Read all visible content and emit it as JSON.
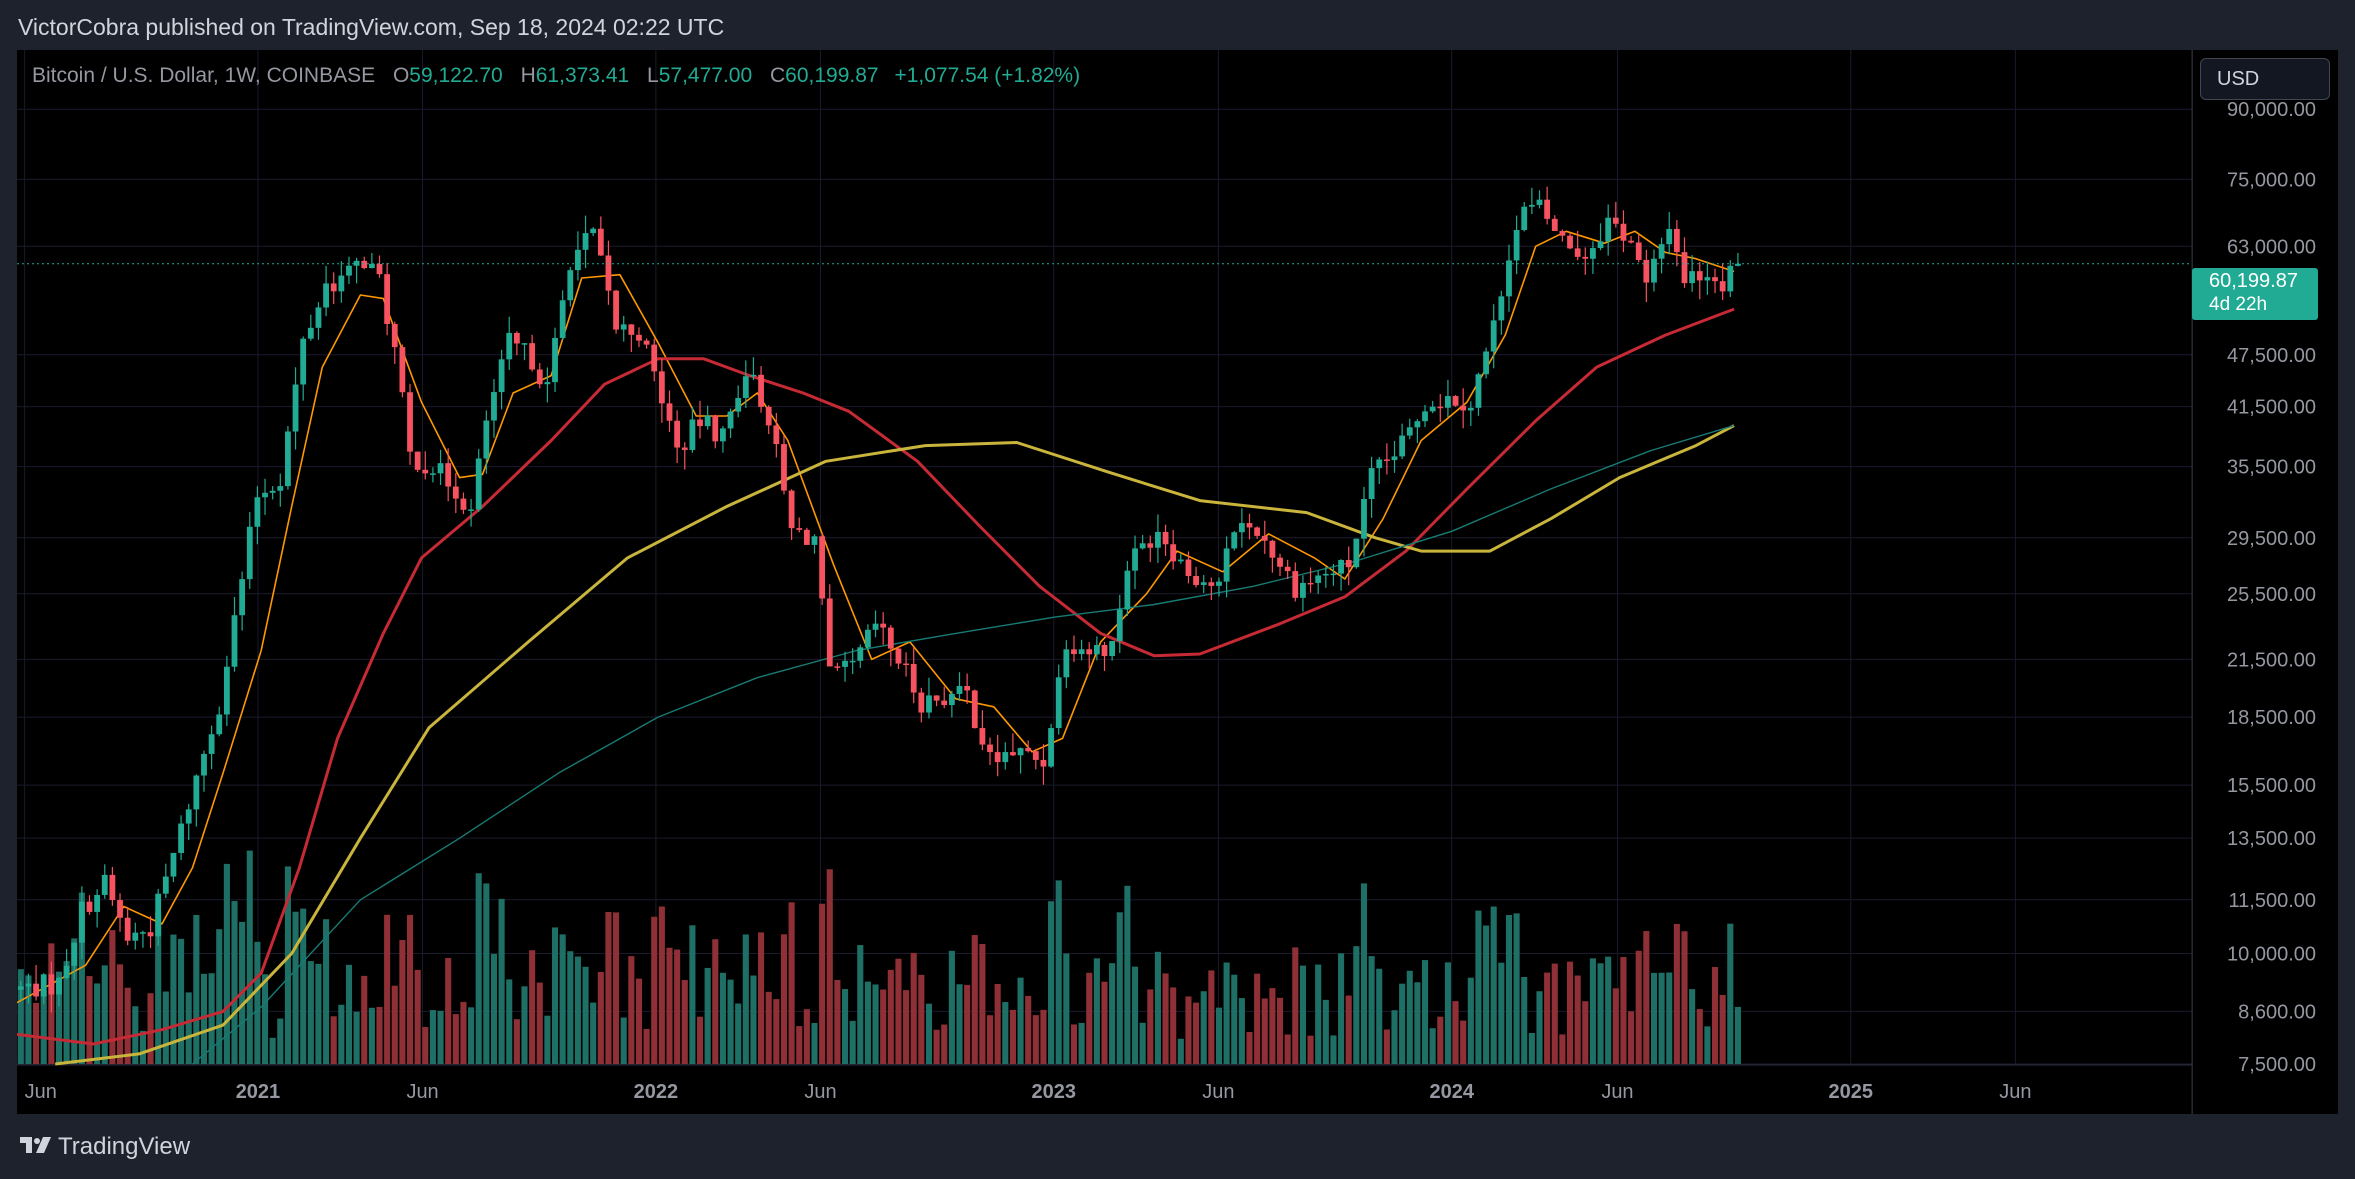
{
  "header": {
    "publish_text": "VictorCobra published on TradingView.com, Sep 18, 2024 02:22 UTC"
  },
  "legend": {
    "symbol": "Bitcoin / U.S. Dollar, 1W, COINBASE",
    "open_key": "O",
    "open": "59,122.70",
    "high_key": "H",
    "high": "61,373.41",
    "low_key": "L",
    "low": "57,477.00",
    "close_key": "C",
    "close": "60,199.87",
    "change": "+1,077.54 (+1.82%)"
  },
  "currency_button": "USD",
  "price_tag": {
    "price": "60,199.87",
    "countdown": "4d 22h"
  },
  "brand": {
    "name": "TradingView"
  },
  "colors": {
    "bull": "#22ab94",
    "bear": "#f7525f",
    "bull_volume": "#1e6f65",
    "bear_volume": "#8f2f36",
    "ma_fast": "#ff9800",
    "ma_mid": "#c62a35",
    "ma_slow": "#c9b43c",
    "ma_long": "#177b74",
    "grid": "#1a1a2e",
    "axis_text": "#9598a1",
    "price_line": "#22ab94"
  },
  "chart_data": {
    "type": "candlestick",
    "title": "Bitcoin / U.S. Dollar, 1W, COINBASE",
    "scale": "log",
    "ylim": [
      7500,
      105000
    ],
    "y_ticks": [
      90000,
      75000,
      63000,
      47500,
      41500,
      35500,
      29500,
      25500,
      21500,
      18500,
      15500,
      13500,
      11500,
      10000,
      8600,
      7500
    ],
    "y_tick_labels": [
      "90,000.00",
      "75,000.00",
      "63,000.00",
      "47,500.00",
      "41,500.00",
      "35,500.00",
      "29,500.00",
      "25,500.00",
      "21,500.00",
      "18,500.00",
      "15,500.00",
      "13,500.00",
      "11,500.00",
      "10,000.00",
      "8,600.00",
      "7,500.00"
    ],
    "x_ticks": [
      "2020-06-01",
      "2021-01-01",
      "2021-06-01",
      "2022-01-01",
      "2022-06-01",
      "2023-01-01",
      "2023-06-01",
      "2024-01-01",
      "2024-06-01",
      "2025-01-01",
      "2025-06-01"
    ],
    "x_tick_labels": [
      "Jun",
      "2021",
      "Jun",
      "2022",
      "Jun",
      "2023",
      "Jun",
      "2024",
      "Jun",
      "2025",
      "Jun"
    ],
    "x_tick_bold": [
      false,
      true,
      false,
      true,
      false,
      true,
      false,
      true,
      false,
      true,
      false
    ],
    "last_price": 60199.87,
    "grid": true,
    "price_points": [
      [
        "2020-05-25",
        9100
      ],
      [
        "2020-07-06",
        9250
      ],
      [
        "2020-07-27",
        11200
      ],
      [
        "2020-08-17",
        12000
      ],
      [
        "2020-09-07",
        10400
      ],
      [
        "2020-09-28",
        10700
      ],
      [
        "2020-10-19",
        12900
      ],
      [
        "2020-11-09",
        15800
      ],
      [
        "2020-11-30",
        19200
      ],
      [
        "2020-12-21",
        26500
      ],
      [
        "2021-01-04",
        33000
      ],
      [
        "2021-01-25",
        34500
      ],
      [
        "2021-02-15",
        49000
      ],
      [
        "2021-03-08",
        57000
      ],
      [
        "2021-03-29",
        58500
      ],
      [
        "2021-04-12",
        61000
      ],
      [
        "2021-04-26",
        57500
      ],
      [
        "2021-05-10",
        48000
      ],
      [
        "2021-05-24",
        36500
      ],
      [
        "2021-06-14",
        35500
      ],
      [
        "2021-07-05",
        33500
      ],
      [
        "2021-07-19",
        31500
      ],
      [
        "2021-08-02",
        40000
      ],
      [
        "2021-08-23",
        49000
      ],
      [
        "2021-09-13",
        47000
      ],
      [
        "2021-09-27",
        43500
      ],
      [
        "2021-10-18",
        61000
      ],
      [
        "2021-11-08",
        65000
      ],
      [
        "2021-11-29",
        51000
      ],
      [
        "2021-12-20",
        50500
      ],
      [
        "2022-01-10",
        42500
      ],
      [
        "2022-01-24",
        37000
      ],
      [
        "2022-02-14",
        40000
      ],
      [
        "2022-03-07",
        38500
      ],
      [
        "2022-03-28",
        46000
      ],
      [
        "2022-04-18",
        40500
      ],
      [
        "2022-05-09",
        30000
      ],
      [
        "2022-05-30",
        29500
      ],
      [
        "2022-06-13",
        20500
      ],
      [
        "2022-07-04",
        21000
      ],
      [
        "2022-07-25",
        23500
      ],
      [
        "2022-08-15",
        21500
      ],
      [
        "2022-09-05",
        19300
      ],
      [
        "2022-09-26",
        19500
      ],
      [
        "2022-10-17",
        19600
      ],
      [
        "2022-11-07",
        16500
      ],
      [
        "2022-11-28",
        16900
      ],
      [
        "2022-12-26",
        16500
      ],
      [
        "2023-01-16",
        22700
      ],
      [
        "2023-02-06",
        22000
      ],
      [
        "2023-02-27",
        22300
      ],
      [
        "2023-03-13",
        27500
      ],
      [
        "2023-04-10",
        30300
      ],
      [
        "2023-05-08",
        27000
      ],
      [
        "2023-06-05",
        25900
      ],
      [
        "2023-06-19",
        30500
      ],
      [
        "2023-07-10",
        30200
      ],
      [
        "2023-08-14",
        26000
      ],
      [
        "2023-09-11",
        26800
      ],
      [
        "2023-10-02",
        27500
      ],
      [
        "2023-10-23",
        34500
      ],
      [
        "2023-11-20",
        37500
      ],
      [
        "2023-12-11",
        42000
      ],
      [
        "2024-01-08",
        42500
      ],
      [
        "2024-01-22",
        42000
      ],
      [
        "2024-02-12",
        51000
      ],
      [
        "2024-02-26",
        62500
      ],
      [
        "2024-03-11",
        69000
      ],
      [
        "2024-03-25",
        69500
      ],
      [
        "2024-04-15",
        64000
      ],
      [
        "2024-05-06",
        61500
      ],
      [
        "2024-05-27",
        67500
      ],
      [
        "2024-06-17",
        64000
      ],
      [
        "2024-07-01",
        56500
      ],
      [
        "2024-07-22",
        67000
      ],
      [
        "2024-08-05",
        58000
      ],
      [
        "2024-08-26",
        59000
      ],
      [
        "2024-09-09",
        57500
      ],
      [
        "2024-09-16",
        60199.87
      ]
    ],
    "series": [
      {
        "key": "ma_fast",
        "points": [
          [
            "2020-05-25",
            8800
          ],
          [
            "2020-07-27",
            9700
          ],
          [
            "2020-08-31",
            11300
          ],
          [
            "2020-10-05",
            10800
          ],
          [
            "2020-11-02",
            12500
          ],
          [
            "2020-11-30",
            16000
          ],
          [
            "2021-01-04",
            22000
          ],
          [
            "2021-02-01",
            32000
          ],
          [
            "2021-03-01",
            46000
          ],
          [
            "2021-04-05",
            55500
          ],
          [
            "2021-04-26",
            55000
          ],
          [
            "2021-05-31",
            42000
          ],
          [
            "2021-07-05",
            34500
          ],
          [
            "2021-07-26",
            34800
          ],
          [
            "2021-08-23",
            43000
          ],
          [
            "2021-09-27",
            45000
          ],
          [
            "2021-10-25",
            58000
          ],
          [
            "2021-11-29",
            58500
          ],
          [
            "2022-01-03",
            49000
          ],
          [
            "2022-02-07",
            40500
          ],
          [
            "2022-03-07",
            40500
          ],
          [
            "2022-04-04",
            43000
          ],
          [
            "2022-05-02",
            38000
          ],
          [
            "2022-06-13",
            27500
          ],
          [
            "2022-07-18",
            21500
          ],
          [
            "2022-08-22",
            22500
          ],
          [
            "2022-10-03",
            19400
          ],
          [
            "2022-11-07",
            19000
          ],
          [
            "2022-12-12",
            16900
          ],
          [
            "2023-01-09",
            17500
          ],
          [
            "2023-02-13",
            22500
          ],
          [
            "2023-03-27",
            25500
          ],
          [
            "2023-04-24",
            28500
          ],
          [
            "2023-06-05",
            27000
          ],
          [
            "2023-07-17",
            29800
          ],
          [
            "2023-08-28",
            28000
          ],
          [
            "2023-09-25",
            26500
          ],
          [
            "2023-10-30",
            31000
          ],
          [
            "2023-12-04",
            38000
          ],
          [
            "2024-01-15",
            42000
          ],
          [
            "2024-02-19",
            50000
          ],
          [
            "2024-03-18",
            63000
          ],
          [
            "2024-04-15",
            65500
          ],
          [
            "2024-05-20",
            63500
          ],
          [
            "2024-06-17",
            65500
          ],
          [
            "2024-07-15",
            62000
          ],
          [
            "2024-08-12",
            61000
          ],
          [
            "2024-09-16",
            59000
          ]
        ]
      },
      {
        "key": "ma_mid",
        "points": [
          [
            "2020-05-25",
            8100
          ],
          [
            "2020-08-03",
            7900
          ],
          [
            "2020-10-05",
            8200
          ],
          [
            "2020-11-30",
            8600
          ],
          [
            "2021-01-04",
            9500
          ],
          [
            "2021-02-08",
            12500
          ],
          [
            "2021-03-15",
            17500
          ],
          [
            "2021-04-26",
            23000
          ],
          [
            "2021-05-31",
            28000
          ],
          [
            "2021-07-26",
            32000
          ],
          [
            "2021-09-27",
            38000
          ],
          [
            "2021-11-15",
            44000
          ],
          [
            "2022-01-03",
            47000
          ],
          [
            "2022-02-14",
            47000
          ],
          [
            "2022-03-28",
            45000
          ],
          [
            "2022-05-16",
            43000
          ],
          [
            "2022-06-27",
            41000
          ],
          [
            "2022-08-29",
            36000
          ],
          [
            "2022-10-24",
            30500
          ],
          [
            "2022-12-19",
            26000
          ],
          [
            "2023-02-13",
            23000
          ],
          [
            "2023-04-03",
            21700
          ],
          [
            "2023-05-15",
            21800
          ],
          [
            "2023-07-24",
            23500
          ],
          [
            "2023-09-25",
            25300
          ],
          [
            "2023-11-20",
            28500
          ],
          [
            "2024-01-15",
            33500
          ],
          [
            "2024-03-18",
            40000
          ],
          [
            "2024-05-13",
            46000
          ],
          [
            "2024-07-15",
            50000
          ],
          [
            "2024-09-16",
            53500
          ]
        ]
      },
      {
        "key": "ma_slow",
        "points": [
          [
            "2020-06-29",
            7500
          ],
          [
            "2020-09-14",
            7700
          ],
          [
            "2020-11-30",
            8300
          ],
          [
            "2021-02-01",
            10000
          ],
          [
            "2021-04-05",
            13500
          ],
          [
            "2021-06-07",
            18000
          ],
          [
            "2021-09-06",
            22500
          ],
          [
            "2021-12-06",
            28000
          ],
          [
            "2022-03-07",
            32000
          ],
          [
            "2022-06-06",
            36000
          ],
          [
            "2022-09-05",
            37500
          ],
          [
            "2022-11-28",
            37800
          ],
          [
            "2023-02-20",
            35000
          ],
          [
            "2023-05-15",
            32500
          ],
          [
            "2023-08-21",
            31500
          ],
          [
            "2023-10-23",
            29500
          ],
          [
            "2023-12-04",
            28500
          ],
          [
            "2024-02-05",
            28500
          ],
          [
            "2024-04-01",
            31000
          ],
          [
            "2024-06-03",
            34500
          ],
          [
            "2024-08-12",
            37500
          ],
          [
            "2024-09-16",
            39500
          ]
        ]
      },
      {
        "key": "ma_long",
        "points": [
          [
            "2020-11-02",
            7500
          ],
          [
            "2021-01-04",
            8700
          ],
          [
            "2021-04-05",
            11500
          ],
          [
            "2021-07-05",
            13500
          ],
          [
            "2021-10-04",
            16000
          ],
          [
            "2022-01-03",
            18500
          ],
          [
            "2022-04-04",
            20500
          ],
          [
            "2022-07-04",
            22000
          ],
          [
            "2022-10-03",
            23000
          ],
          [
            "2023-01-02",
            24000
          ],
          [
            "2023-04-03",
            24800
          ],
          [
            "2023-07-03",
            26000
          ],
          [
            "2023-10-02",
            27700
          ],
          [
            "2024-01-01",
            30000
          ],
          [
            "2024-04-01",
            33500
          ],
          [
            "2024-07-01",
            37000
          ],
          [
            "2024-09-16",
            39500
          ]
        ]
      }
    ]
  }
}
